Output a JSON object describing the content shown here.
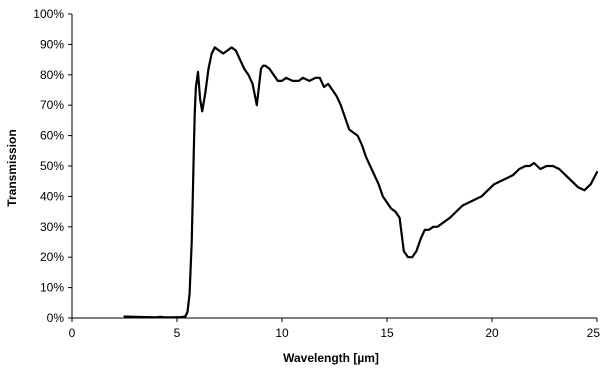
{
  "chart_data": {
    "type": "line",
    "xlabel": "Wavelength [µm]",
    "ylabel": "Transmission",
    "xlim": [
      0,
      25
    ],
    "ylim": [
      0,
      100
    ],
    "x_ticks": [
      0,
      5,
      10,
      15,
      20,
      25
    ],
    "x_tick_labels": [
      "0",
      "5",
      "10",
      "15",
      "20",
      "25"
    ],
    "y_ticks": [
      0,
      10,
      20,
      30,
      40,
      50,
      60,
      70,
      80,
      90,
      100
    ],
    "y_tick_labels": [
      "0%",
      "10%",
      "20%",
      "30%",
      "40%",
      "50%",
      "60%",
      "70%",
      "80%",
      "90%",
      "100%"
    ],
    "grid": false,
    "legend": "none",
    "line_color": "#000000",
    "series": [
      {
        "x": [
          2.5,
          3.0,
          3.5,
          4.0,
          4.2,
          4.4,
          4.8,
          5.2,
          5.4,
          5.5,
          5.6,
          5.7,
          5.75,
          5.8,
          5.85,
          5.9,
          6.0,
          6.1,
          6.2,
          6.35,
          6.5,
          6.65,
          6.8,
          7.0,
          7.2,
          7.4,
          7.6,
          7.8,
          8.0,
          8.2,
          8.4,
          8.6,
          8.8,
          9.0,
          9.1,
          9.2,
          9.4,
          9.6,
          9.8,
          10.0,
          10.2,
          10.5,
          10.8,
          11.0,
          11.3,
          11.6,
          11.8,
          12.0,
          12.2,
          12.4,
          12.6,
          12.8,
          13.0,
          13.2,
          13.4,
          13.6,
          13.8,
          14.0,
          14.2,
          14.4,
          14.6,
          14.8,
          15.0,
          15.2,
          15.4,
          15.6,
          15.8,
          16.0,
          16.2,
          16.4,
          16.6,
          16.8,
          17.0,
          17.2,
          17.4,
          17.6,
          17.8,
          18.0,
          18.3,
          18.6,
          18.9,
          19.2,
          19.5,
          19.8,
          20.1,
          20.4,
          20.7,
          21.0,
          21.3,
          21.6,
          21.8,
          22.0,
          22.3,
          22.6,
          22.9,
          23.2,
          23.5,
          23.8,
          24.1,
          24.4,
          24.7,
          25.0
        ],
        "y": [
          0.5,
          0.4,
          0.3,
          0.2,
          0.4,
          0.2,
          0.2,
          0.3,
          0.5,
          2,
          8,
          25,
          40,
          55,
          68,
          76,
          81,
          72,
          68,
          74,
          82,
          87,
          89,
          88,
          87,
          88,
          89,
          88,
          85,
          82,
          80,
          77,
          70,
          82,
          83,
          83,
          82,
          80,
          78,
          78,
          79,
          78,
          78,
          79,
          78,
          79,
          79,
          76,
          77,
          75,
          73,
          70,
          66,
          62,
          61,
          60,
          57,
          53,
          50,
          47,
          44,
          40,
          38,
          36,
          35,
          33,
          22,
          20,
          20,
          22,
          26,
          29,
          29,
          30,
          30,
          31,
          32,
          33,
          35,
          37,
          38,
          39,
          40,
          42,
          44,
          45,
          46,
          47,
          49,
          50,
          50,
          51,
          49,
          50,
          50,
          49,
          47,
          45,
          43,
          42,
          44,
          48
        ]
      }
    ]
  }
}
